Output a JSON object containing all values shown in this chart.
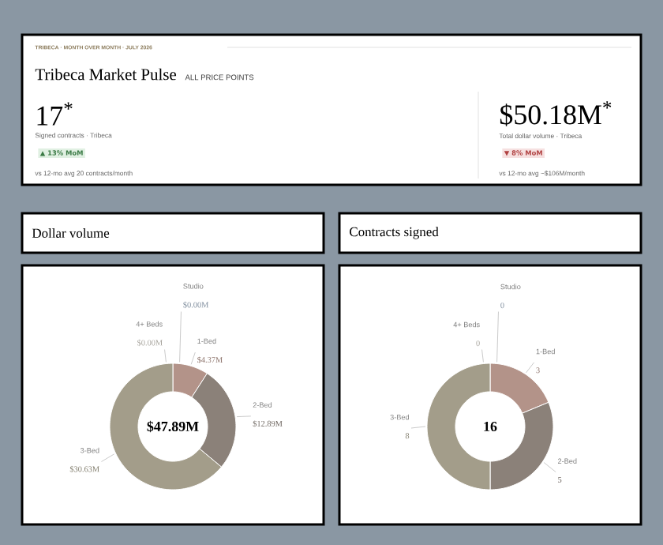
{
  "chart_data": [
    {
      "type": "other",
      "title": "Tribeca Market Pulse",
      "subtitle": "ALL PRICE POINTS",
      "annotations": [
        "TRIBECA · MONTH OVER MONTH · JULY 2026",
        "17$^{*}$",
        "Signed contracts · Tribeca",
        "▲ 13% MoM",
        "vs 12-mo avg 20 contracts/month",
        "$50.18M$^{*}$",
        "Total dollar volume · Tribeca",
        "▼ 8% MoM",
        "vs 12-mo avg ~$106M/month"
      ]
    },
    {
      "type": "donut",
      "title": "Dollar volume",
      "categories": [
        "Studio",
        "1-Bed",
        "2-Bed",
        "3-Bed",
        "4+ Beds"
      ],
      "values": [
        0.0,
        4.37,
        12.89,
        30.63,
        0.0
      ],
      "value_labels": [
        "$0.00M",
        "$4.37M",
        "$12.89M",
        "$30.63M",
        "$0.00M"
      ],
      "colors": [
        "#9fb0c4",
        "#b39389",
        "#8b8179",
        "#a39d8a",
        "#d2cfc6"
      ],
      "annotations": [
        "$47.89M"
      ]
    },
    {
      "type": "donut",
      "title": "Contracts signed",
      "categories": [
        "Studio",
        "1-Bed",
        "2-Bed",
        "3-Bed",
        "4+ Beds"
      ],
      "values": [
        0,
        3,
        5,
        8,
        0
      ],
      "value_labels": [
        "0",
        "3",
        "5",
        "8",
        "0"
      ],
      "colors": [
        "#9fb0c4",
        "#b39389",
        "#8b8179",
        "#a39d8a",
        "#d2cfc6"
      ],
      "annotations": [
        "16"
      ]
    }
  ]
}
